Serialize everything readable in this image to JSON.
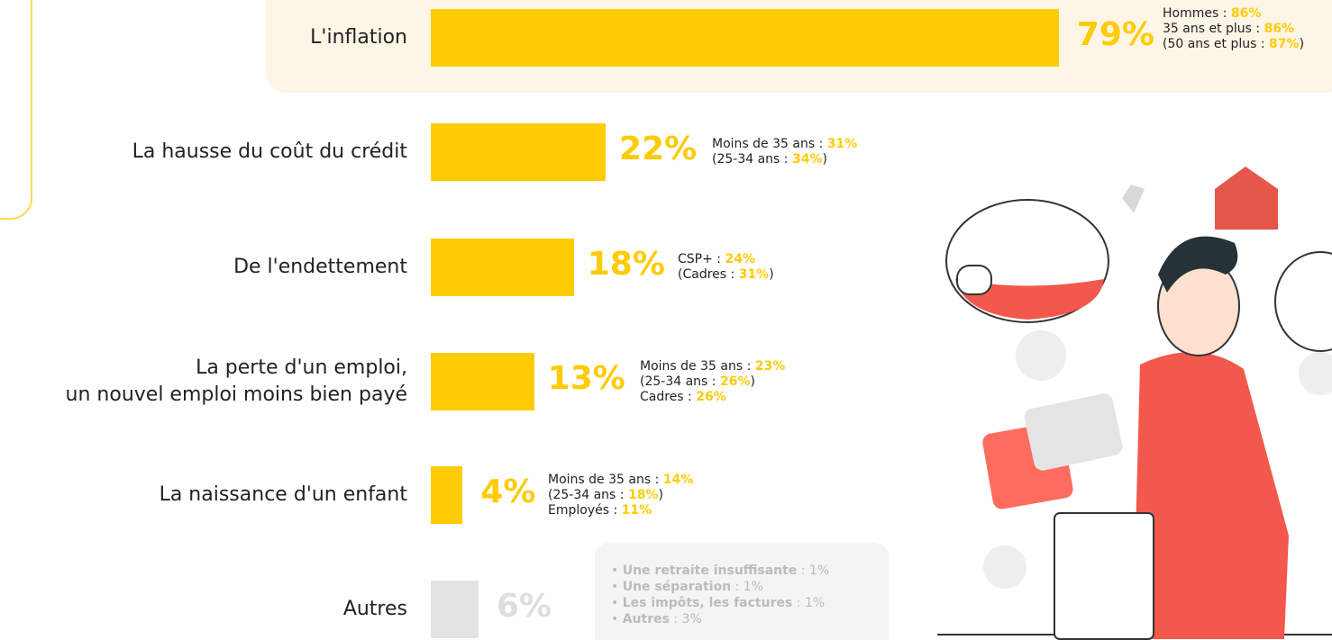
{
  "chart_data": {
    "type": "bar",
    "categories": [
      "L'inflation",
      "La hausse du coût du crédit",
      "De l'endettement",
      "La perte d'un emploi,\nun nouvel emploi moins bien payé",
      "La naissance d'un enfant",
      "Autres"
    ],
    "values": [
      79,
      22,
      18,
      13,
      4,
      6
    ],
    "value_labels": [
      "79%",
      "22%",
      "18%",
      "13%",
      "4%",
      "6%"
    ],
    "colors": [
      "#ffcb05",
      "#ffcb05",
      "#ffcb05",
      "#ffcb05",
      "#ffcb05",
      "#e3e3e3"
    ],
    "annotations": [
      [
        {
          "text": "Hommes : ",
          "highlight": "86%"
        },
        {
          "text": "35 ans et plus : ",
          "highlight": "86%"
        },
        {
          "text": "(50 ans et plus : ",
          "highlight": "87%",
          "suffix": ")"
        }
      ],
      [
        {
          "text": "Moins de 35 ans : ",
          "highlight": "31%"
        },
        {
          "text": "(25-34 ans : ",
          "highlight": "34%",
          "suffix": ")"
        }
      ],
      [
        {
          "text": "CSP+ : ",
          "highlight": "24%"
        },
        {
          "text": "(Cadres : ",
          "highlight": "31%",
          "suffix": ")"
        }
      ],
      [
        {
          "text": "Moins de 35 ans : ",
          "highlight": "23%"
        },
        {
          "text": "(25-34 ans : ",
          "highlight": "26%",
          "suffix": ")"
        },
        {
          "text": "Cadres : ",
          "highlight": "26%"
        }
      ],
      [
        {
          "text": "Moins de 35 ans : ",
          "highlight": "14%"
        },
        {
          "text": "(25-34 ans : ",
          "highlight": "18%",
          "suffix": ")"
        },
        {
          "text": "Employés : ",
          "highlight": "11%"
        }
      ]
    ],
    "details": [
      {
        "name": "Une retraite insuffisante",
        "rest": " : 1%"
      },
      {
        "name": "Une séparation",
        "rest": " : 1%"
      },
      {
        "name": "Les impôts, les factures",
        "rest": " : 1%"
      },
      {
        "name": "Autres",
        "rest": " : 3%"
      }
    ]
  }
}
